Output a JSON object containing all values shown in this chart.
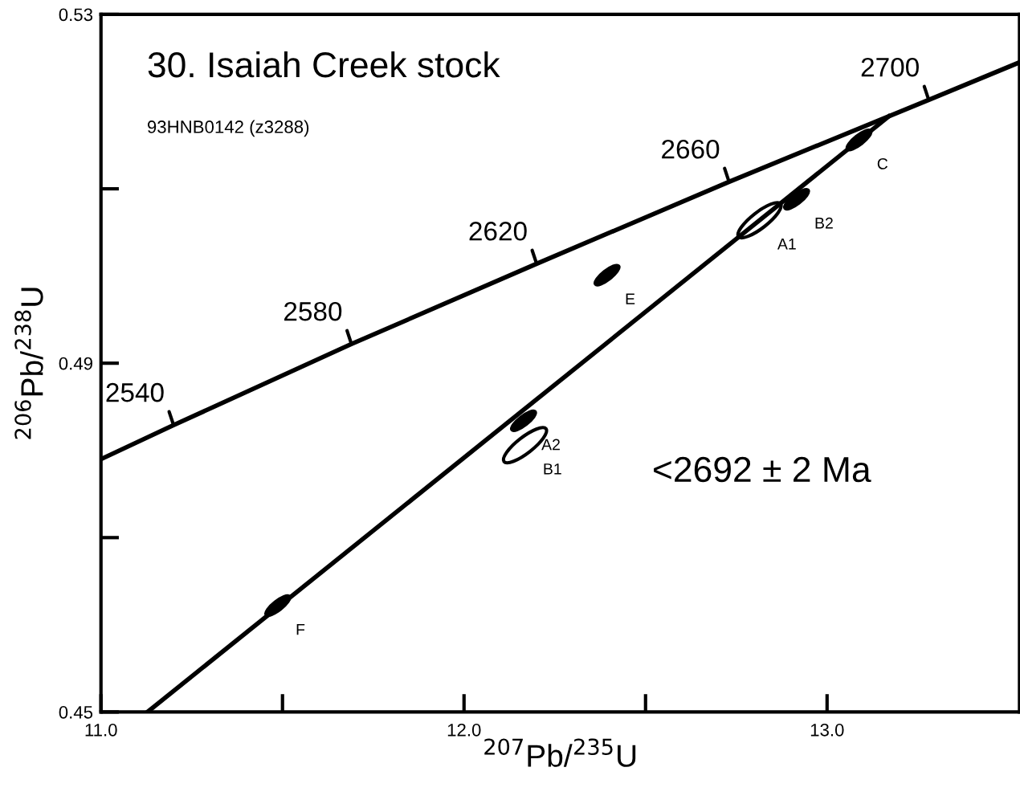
{
  "chart_data": {
    "type": "line",
    "title": "30. Isaiah Creek stock",
    "subtitle": "93HNB0142 (z3288)",
    "xlabel": "$^{207}$Pb/$^{235}$U",
    "ylabel": "$^{206}$Pb/$^{238}$U",
    "xlim": [
      11.0,
      13.53
    ],
    "ylim": [
      0.45,
      0.53
    ],
    "xticks": [
      {
        "value": 11.0,
        "label": "11.0"
      },
      {
        "value": 11.5,
        "label": null
      },
      {
        "value": 12.0,
        "label": "12.0"
      },
      {
        "value": 12.5,
        "label": null
      },
      {
        "value": 13.0,
        "label": "13.0"
      }
    ],
    "yticks": [
      0.45,
      {
        "value": 0.47,
        "label": null
      },
      0.49,
      {
        "value": 0.51,
        "label": null
      },
      0.53
    ],
    "grid": false,
    "legend": false,
    "marker": "none",
    "series": [
      {
        "color": "#000000",
        "x": [
          11.0,
          11.2,
          11.69,
          12.2,
          12.73,
          13.28,
          13.53
        ],
        "values": [
          0.479,
          0.4829,
          0.4922,
          0.5014,
          0.5108,
          0.5202,
          0.5245
        ]
      },
      {
        "color": "#000000",
        "x": [
          11.128,
          13.17
        ],
        "values": [
          0.45,
          0.5183
        ]
      },
      {
        "type": "scatter",
        "color": "#000000",
        "x": [
          13.088,
          12.916,
          12.394,
          12.164,
          11.487
        ],
        "values": [
          0.5156,
          0.5088,
          0.5001,
          0.4834,
          0.4622
        ]
      },
      {
        "type": "scatter",
        "color": "#000000",
        "x": [
          12.814,
          12.168
        ],
        "values": [
          0.5064,
          0.4806
        ]
      }
    ],
    "annotations": [
      "<2692 ± 2 Ma",
      {
        "text": "2540",
        "x": 11.2,
        "y": 0.4829
      },
      {
        "text": "2580",
        "x": 11.69,
        "y": 0.4922
      },
      {
        "text": "2620",
        "x": 12.2,
        "y": 0.5014
      },
      {
        "text": "2660",
        "x": 12.73,
        "y": 0.5108
      },
      {
        "text": "2700",
        "x": 13.28,
        "y": 0.5202
      },
      {
        "text": "C",
        "x": 13.088,
        "y": 0.5156
      },
      {
        "text": "B2",
        "x": 12.916,
        "y": 0.5088
      },
      {
        "text": "A1",
        "x": 12.814,
        "y": 0.5064
      },
      {
        "text": "E",
        "x": 12.394,
        "y": 0.5001
      },
      {
        "text": "A2",
        "x": 12.164,
        "y": 0.4834
      },
      {
        "text": "B1",
        "x": 12.168,
        "y": 0.4806
      },
      {
        "text": "F",
        "x": 11.487,
        "y": 0.4622
      }
    ]
  }
}
